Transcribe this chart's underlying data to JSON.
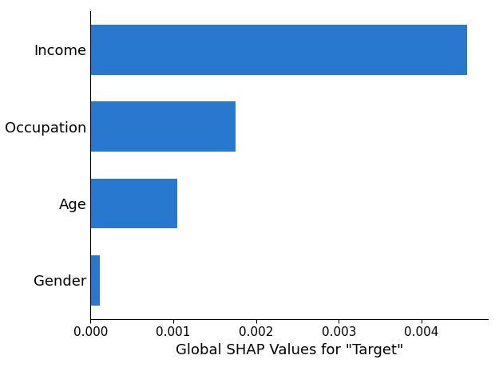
{
  "categories": [
    "Gender",
    "Age",
    "Occupation",
    "Income"
  ],
  "values": [
    0.000115,
    0.00105,
    0.00175,
    0.00455
  ],
  "bar_color": "#2878d0",
  "xlabel": "Global SHAP Values for \"Target\"",
  "xlim": [
    0,
    0.0048
  ],
  "xlabel_fontsize": 13,
  "ytick_fontsize": 13,
  "xtick_fontsize": 11,
  "bar_height": 0.65,
  "background_color": "#ffffff"
}
